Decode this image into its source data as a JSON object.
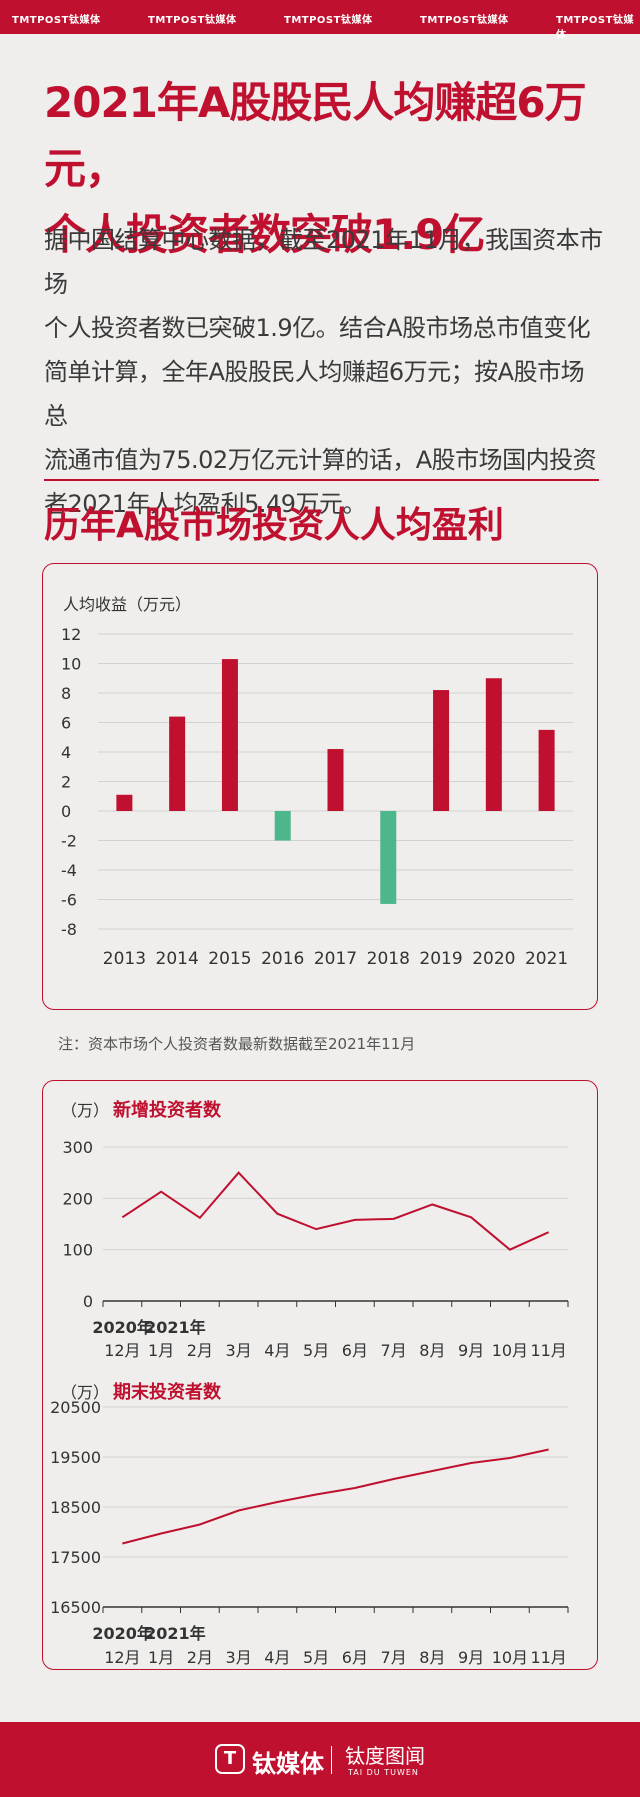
{
  "header": {
    "logos": [
      "TMTPOST钛媒体",
      "TMTPOST钛媒体",
      "TMTPOST钛媒体",
      "TMTPOST钛媒体",
      "TMTPOST钛媒体"
    ]
  },
  "title_line1": "2021年A股股民人均赚超6万元，",
  "title_line2": "个人投资者数突破1.9亿",
  "intro_lines": [
    "据中国结算中心数据，截至2021年11月，我国资本市场",
    "个人投资者数已突破1.9亿。结合A股市场总市值变化",
    "简单计算，全年A股股民人均赚超6万元；按A股市场总",
    "流通市值为75.02万亿元计算的话，A股市场国内投资",
    "者2021年人均盈利5.49万元。"
  ],
  "subtitle": "历年A股市场投资人人均盈利",
  "note": "注：资本市场个人投资者数最新数据截至2021年11月",
  "colors": {
    "brand": "#c0102f",
    "positive": "#c0102f",
    "negative": "#4bb78a",
    "grid": "#d2d2d2"
  },
  "chart_data": [
    {
      "type": "bar",
      "ylabel": "人均收益（万元）",
      "ylim": [
        -8,
        12
      ],
      "yticks": [
        12,
        10,
        8,
        6,
        4,
        2,
        0,
        -2,
        -4,
        -6,
        -8
      ],
      "categories": [
        "2013",
        "2014",
        "2015",
        "2016",
        "2017",
        "2018",
        "2019",
        "2020",
        "2021"
      ],
      "values": [
        1.1,
        6.4,
        10.3,
        -2.0,
        4.2,
        -6.3,
        8.2,
        9.0,
        5.5
      ]
    },
    {
      "type": "line",
      "unit": "（万）",
      "title": "新增投资者数",
      "ylim": [
        0,
        300
      ],
      "yticks": [
        300,
        200,
        100,
        0
      ],
      "x_labels_top": [
        "2020年",
        "2021年"
      ],
      "x_labels": [
        "12月",
        "1月",
        "2月",
        "3月",
        "4月",
        "5月",
        "6月",
        "7月",
        "8月",
        "9月",
        "10月",
        "11月"
      ],
      "values": [
        163,
        213,
        162,
        250,
        170,
        140,
        158,
        160,
        188,
        163,
        100,
        134
      ]
    },
    {
      "type": "line",
      "unit": "（万）",
      "title": "期末投资者数",
      "ylim": [
        16500,
        20500
      ],
      "yticks": [
        20500,
        19500,
        18500,
        17500,
        16500
      ],
      "x_labels_top": [
        "2020年",
        "2021年"
      ],
      "x_labels": [
        "12月",
        "1月",
        "2月",
        "3月",
        "4月",
        "5月",
        "6月",
        "7月",
        "8月",
        "9月",
        "10月",
        "11月"
      ],
      "values": [
        17770,
        17970,
        18150,
        18430,
        18600,
        18750,
        18880,
        19060,
        19220,
        19380,
        19480,
        19650
      ]
    }
  ],
  "footer": {
    "icon": "T",
    "brand": "钛媒体",
    "brand2": "钛度图闻",
    "brand2_sub": "TAI DU TUWEN"
  }
}
